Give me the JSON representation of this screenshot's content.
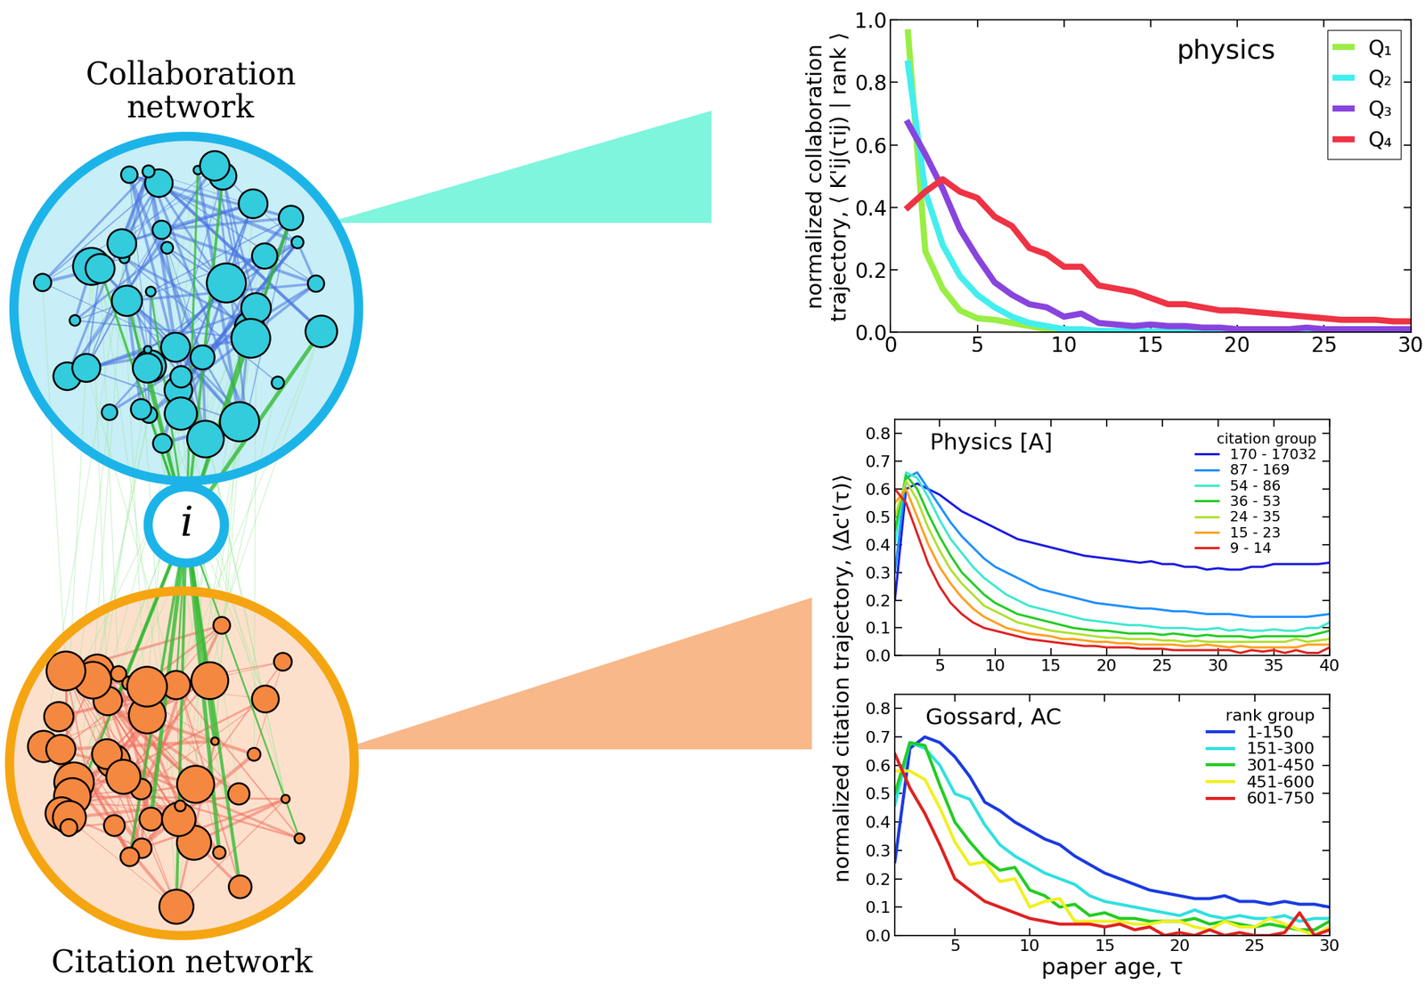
{
  "diagram": {
    "top_label": "Collaboration\nnetwork",
    "bottom_label": "Citation network",
    "center_label": "i"
  },
  "chart_data": [
    {
      "type": "line",
      "title": "physics",
      "y_label": "normalized collaboration\ntrajectory, ⟨ K'ij(τij) | rank ⟩",
      "x": [
        1,
        2,
        3,
        4,
        5,
        6,
        7,
        8,
        9,
        10,
        11,
        12,
        13,
        14,
        15,
        16,
        17,
        18,
        19,
        20,
        21,
        22,
        23,
        24,
        25,
        26,
        27,
        28,
        29,
        30
      ],
      "xlim": [
        0,
        30
      ],
      "xticks": [
        0,
        5,
        10,
        15,
        20,
        25,
        30
      ],
      "ylim": [
        0,
        1.0
      ],
      "yticks": [
        {
          "value": 0,
          "label": "0.0"
        },
        {
          "value": 0.2,
          "label": "0.2"
        },
        {
          "value": 0.4,
          "label": "0.4"
        },
        {
          "value": 0.6,
          "label": "0.6"
        },
        {
          "value": 0.8,
          "label": "0.8"
        },
        {
          "value": 1.0,
          "label": "1.0"
        }
      ],
      "legend": "upper right",
      "series": [
        {
          "name": "Q₁",
          "color": "#99ee44",
          "values": [
            0.96,
            0.26,
            0.14,
            0.07,
            0.045,
            0.04,
            0.03,
            0.02,
            0.01,
            0.005,
            0.003,
            0.002,
            0.001,
            0.001,
            0.001,
            0.001,
            0.001,
            0.001,
            0.001,
            0.001,
            0.001,
            0.001,
            0.001,
            0.001,
            0.001,
            0.001,
            0.001,
            0.001,
            0.001,
            0.001
          ]
        },
        {
          "name": "Q₂",
          "color": "#44eeee",
          "values": [
            0.86,
            0.45,
            0.28,
            0.18,
            0.12,
            0.08,
            0.05,
            0.03,
            0.02,
            0.01,
            0.01,
            0.005,
            0.004,
            0.003,
            0.003,
            0.003,
            0.002,
            0.002,
            0.002,
            0.002,
            0.002,
            0.002,
            0.002,
            0.002,
            0.002,
            0.002,
            0.002,
            0.002,
            0.002,
            0.002
          ]
        },
        {
          "name": "Q₃",
          "color": "#8844dd",
          "values": [
            0.67,
            0.57,
            0.46,
            0.33,
            0.24,
            0.16,
            0.12,
            0.09,
            0.08,
            0.05,
            0.06,
            0.03,
            0.025,
            0.02,
            0.025,
            0.02,
            0.02,
            0.015,
            0.015,
            0.01,
            0.01,
            0.01,
            0.01,
            0.015,
            0.01,
            0.01,
            0.01,
            0.01,
            0.01,
            0.01
          ]
        },
        {
          "name": "Q₄",
          "color": "#ee3344",
          "values": [
            0.4,
            0.45,
            0.49,
            0.45,
            0.43,
            0.37,
            0.34,
            0.27,
            0.25,
            0.21,
            0.21,
            0.15,
            0.14,
            0.13,
            0.11,
            0.09,
            0.09,
            0.08,
            0.07,
            0.07,
            0.065,
            0.06,
            0.055,
            0.05,
            0.045,
            0.04,
            0.04,
            0.04,
            0.035,
            0.035
          ]
        }
      ]
    },
    {
      "type": "line",
      "title": "Physics [A]",
      "y_label": "normalized citation trajectory, ⟨Δc'(τ)⟩",
      "legend_title": "citation group",
      "x": [
        1,
        2,
        3,
        4,
        5,
        6,
        7,
        8,
        9,
        10,
        11,
        12,
        13,
        14,
        15,
        16,
        17,
        18,
        19,
        20,
        21,
        22,
        23,
        24,
        25,
        26,
        27,
        28,
        29,
        30,
        31,
        32,
        33,
        34,
        35,
        36,
        37,
        38,
        39,
        40
      ],
      "xlim": [
        1,
        40
      ],
      "xticks": [
        5,
        10,
        15,
        20,
        25,
        30,
        35,
        40
      ],
      "ylim": [
        0,
        0.85
      ],
      "yticks": [
        {
          "value": 0,
          "label": "0.0"
        },
        {
          "value": 0.1,
          "label": "0.1"
        },
        {
          "value": 0.2,
          "label": "0.2"
        },
        {
          "value": 0.3,
          "label": "0.3"
        },
        {
          "value": 0.4,
          "label": "0.4"
        },
        {
          "value": 0.5,
          "label": "0.5"
        },
        {
          "value": 0.6,
          "label": "0.6"
        },
        {
          "value": 0.7,
          "label": "0.7"
        },
        {
          "value": 0.8,
          "label": "0.8"
        }
      ],
      "legend": "upper right",
      "series": [
        {
          "name": "170 - 17032",
          "color": "#1a1ae0",
          "values": [
            0.2,
            0.6,
            0.62,
            0.6,
            0.58,
            0.55,
            0.52,
            0.5,
            0.48,
            0.46,
            0.44,
            0.42,
            0.41,
            0.4,
            0.39,
            0.38,
            0.37,
            0.36,
            0.355,
            0.35,
            0.345,
            0.34,
            0.335,
            0.34,
            0.33,
            0.33,
            0.32,
            0.32,
            0.31,
            0.315,
            0.31,
            0.31,
            0.32,
            0.32,
            0.33,
            0.33,
            0.33,
            0.33,
            0.33,
            0.335
          ]
        },
        {
          "name": "87 - 169",
          "color": "#1e8fff",
          "values": [
            0.3,
            0.64,
            0.66,
            0.6,
            0.54,
            0.48,
            0.43,
            0.39,
            0.35,
            0.32,
            0.3,
            0.28,
            0.26,
            0.24,
            0.23,
            0.22,
            0.21,
            0.2,
            0.19,
            0.185,
            0.18,
            0.175,
            0.17,
            0.17,
            0.165,
            0.16,
            0.16,
            0.155,
            0.15,
            0.15,
            0.15,
            0.145,
            0.14,
            0.14,
            0.14,
            0.14,
            0.14,
            0.14,
            0.145,
            0.15
          ]
        },
        {
          "name": "54 - 86",
          "color": "#3ee8d0",
          "values": [
            0.4,
            0.66,
            0.64,
            0.57,
            0.49,
            0.42,
            0.37,
            0.32,
            0.28,
            0.25,
            0.22,
            0.2,
            0.18,
            0.17,
            0.16,
            0.15,
            0.14,
            0.13,
            0.125,
            0.12,
            0.115,
            0.11,
            0.11,
            0.105,
            0.1,
            0.1,
            0.1,
            0.095,
            0.095,
            0.1,
            0.09,
            0.095,
            0.09,
            0.09,
            0.095,
            0.09,
            0.09,
            0.1,
            0.1,
            0.12
          ]
        },
        {
          "name": "36 - 53",
          "color": "#22cc22",
          "values": [
            0.45,
            0.65,
            0.6,
            0.51,
            0.43,
            0.36,
            0.3,
            0.26,
            0.22,
            0.19,
            0.17,
            0.15,
            0.14,
            0.13,
            0.12,
            0.11,
            0.1,
            0.095,
            0.09,
            0.09,
            0.085,
            0.08,
            0.08,
            0.08,
            0.075,
            0.08,
            0.075,
            0.07,
            0.075,
            0.07,
            0.07,
            0.07,
            0.065,
            0.07,
            0.07,
            0.07,
            0.07,
            0.07,
            0.08,
            0.09
          ]
        },
        {
          "name": "24 - 35",
          "color": "#b0e030",
          "values": [
            0.5,
            0.63,
            0.56,
            0.46,
            0.38,
            0.31,
            0.26,
            0.22,
            0.18,
            0.16,
            0.14,
            0.12,
            0.11,
            0.1,
            0.09,
            0.085,
            0.08,
            0.075,
            0.07,
            0.065,
            0.065,
            0.06,
            0.06,
            0.06,
            0.055,
            0.055,
            0.05,
            0.055,
            0.05,
            0.05,
            0.05,
            0.05,
            0.05,
            0.05,
            0.05,
            0.05,
            0.06,
            0.05,
            0.055,
            0.06
          ]
        },
        {
          "name": "15 - 23",
          "color": "#ffa020",
          "values": [
            0.55,
            0.6,
            0.5,
            0.4,
            0.32,
            0.26,
            0.21,
            0.17,
            0.14,
            0.12,
            0.1,
            0.09,
            0.08,
            0.075,
            0.07,
            0.06,
            0.06,
            0.055,
            0.05,
            0.05,
            0.045,
            0.045,
            0.04,
            0.04,
            0.04,
            0.04,
            0.035,
            0.035,
            0.04,
            0.035,
            0.03,
            0.035,
            0.03,
            0.03,
            0.03,
            0.03,
            0.03,
            0.04,
            0.04,
            0.04
          ]
        },
        {
          "name": "9 - 14",
          "color": "#e02020",
          "values": [
            0.6,
            0.55,
            0.44,
            0.33,
            0.25,
            0.19,
            0.15,
            0.12,
            0.1,
            0.09,
            0.08,
            0.07,
            0.06,
            0.055,
            0.05,
            0.045,
            0.04,
            0.035,
            0.035,
            0.03,
            0.03,
            0.03,
            0.025,
            0.025,
            0.025,
            0.02,
            0.02,
            0.02,
            0.02,
            0.02,
            0.02,
            0.01,
            0.02,
            0.015,
            0.02,
            0.01,
            0.02,
            0.01,
            0.01,
            0.03
          ]
        }
      ]
    },
    {
      "type": "line",
      "title": "Gossard, AC",
      "x_label": "paper age, τ",
      "legend_title": "rank group",
      "x": [
        1,
        2,
        3,
        4,
        5,
        6,
        7,
        8,
        9,
        10,
        11,
        12,
        13,
        14,
        15,
        16,
        17,
        18,
        19,
        20,
        21,
        22,
        23,
        24,
        25,
        26,
        27,
        28,
        29,
        30
      ],
      "xlim": [
        1,
        30
      ],
      "xticks": [
        5,
        10,
        15,
        20,
        25,
        30
      ],
      "ylim": [
        0,
        0.85
      ],
      "yticks": [
        {
          "value": 0,
          "label": "0.0"
        },
        {
          "value": 0.1,
          "label": "0.1"
        },
        {
          "value": 0.2,
          "label": "0.2"
        },
        {
          "value": 0.3,
          "label": "0.3"
        },
        {
          "value": 0.4,
          "label": "0.4"
        },
        {
          "value": 0.5,
          "label": "0.5"
        },
        {
          "value": 0.6,
          "label": "0.6"
        },
        {
          "value": 0.7,
          "label": "0.7"
        },
        {
          "value": 0.8,
          "label": "0.8"
        }
      ],
      "legend": "upper right",
      "series": [
        {
          "name": "1-150",
          "color": "#1a3ae0",
          "values": [
            0.26,
            0.66,
            0.7,
            0.68,
            0.63,
            0.56,
            0.47,
            0.44,
            0.4,
            0.37,
            0.34,
            0.32,
            0.28,
            0.25,
            0.22,
            0.2,
            0.18,
            0.16,
            0.15,
            0.14,
            0.13,
            0.13,
            0.14,
            0.12,
            0.12,
            0.11,
            0.12,
            0.11,
            0.11,
            0.1
          ]
        },
        {
          "name": "151-300",
          "color": "#30e0e0",
          "values": [
            0.46,
            0.68,
            0.66,
            0.6,
            0.5,
            0.48,
            0.39,
            0.32,
            0.28,
            0.25,
            0.22,
            0.2,
            0.18,
            0.14,
            0.12,
            0.11,
            0.1,
            0.09,
            0.08,
            0.07,
            0.09,
            0.07,
            0.06,
            0.07,
            0.06,
            0.06,
            0.07,
            0.05,
            0.06,
            0.06
          ]
        },
        {
          "name": "301-450",
          "color": "#22cc22",
          "values": [
            0.5,
            0.68,
            0.67,
            0.53,
            0.4,
            0.33,
            0.27,
            0.23,
            0.24,
            0.16,
            0.14,
            0.1,
            0.11,
            0.07,
            0.08,
            0.06,
            0.06,
            0.05,
            0.05,
            0.05,
            0.06,
            0.04,
            0.05,
            0.04,
            0.03,
            0.04,
            0.03,
            0.02,
            0.02,
            0.05
          ]
        },
        {
          "name": "451-600",
          "color": "#f0f020",
          "values": [
            0.58,
            0.58,
            0.55,
            0.45,
            0.33,
            0.25,
            0.26,
            0.19,
            0.2,
            0.1,
            0.12,
            0.13,
            0.05,
            0.05,
            0.05,
            0.05,
            0.04,
            0.04,
            0.05,
            0.05,
            0.03,
            0.02,
            0.05,
            0.03,
            0.03,
            0.06,
            0.04,
            0.02,
            0.0,
            0.03
          ]
        },
        {
          "name": "601-750",
          "color": "#e02020",
          "values": [
            0.64,
            0.52,
            0.43,
            0.32,
            0.2,
            0.16,
            0.12,
            0.1,
            0.08,
            0.06,
            0.05,
            0.04,
            0.04,
            0.04,
            0.03,
            0.04,
            0.02,
            0.03,
            0.0,
            0.01,
            0.0,
            0.02,
            0.0,
            0.01,
            0.0,
            0.0,
            0.01,
            0.08,
            0.0,
            0.02
          ]
        }
      ]
    }
  ]
}
